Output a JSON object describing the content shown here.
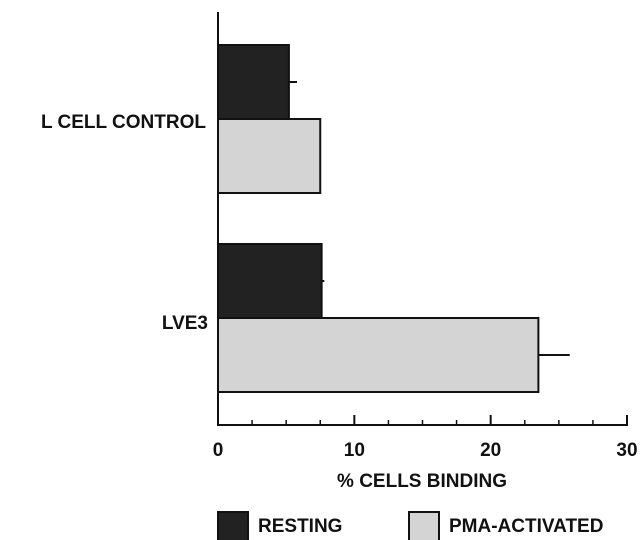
{
  "chart_data": {
    "type": "bar",
    "orientation": "horizontal",
    "categories": [
      "L CELL CONTROL",
      "LVE3"
    ],
    "series": [
      {
        "name": "RESTING",
        "values": [
          5.2,
          7.6
        ],
        "errors": [
          0.6,
          0.2
        ],
        "color": "#222222"
      },
      {
        "name": "PMA-ACTIVATED",
        "values": [
          7.5,
          23.5
        ],
        "errors": [
          0.0,
          2.3
        ],
        "color": "#d4d4d4"
      }
    ],
    "xlabel": "% CELLS BINDING",
    "xlim": [
      0,
      30
    ],
    "xticks": [
      0,
      10,
      20,
      30
    ],
    "grid": false,
    "legend_position": "bottom"
  }
}
